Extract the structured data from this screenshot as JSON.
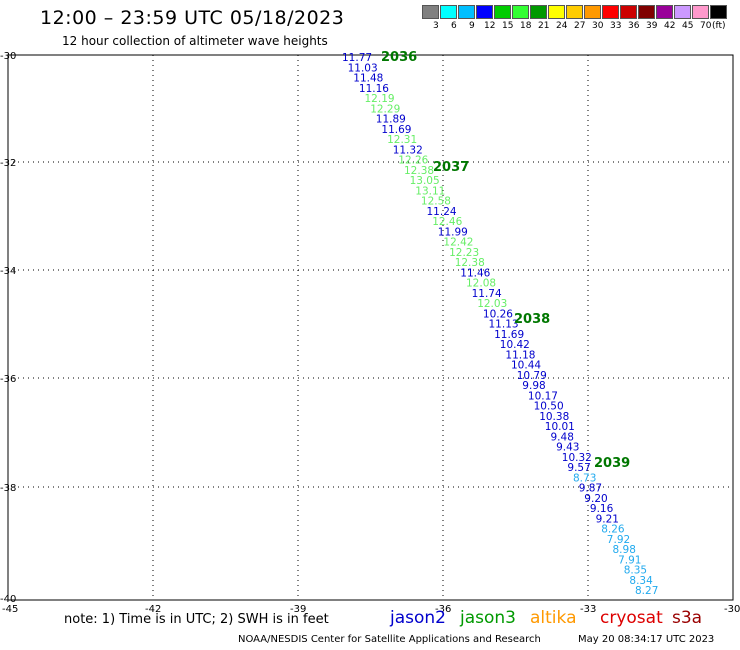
{
  "header": {
    "title": "12:00 – 23:59 UTC 05/18/2023",
    "subtitle": "12 hour collection of altimeter wave heights"
  },
  "legend": {
    "colors": [
      "#808080",
      "#00ffff",
      "#00bfff",
      "#0000ff",
      "#00cc00",
      "#33ff33",
      "#009900",
      "#ffff00",
      "#ffcc00",
      "#ff9900",
      "#ff0000",
      "#cc0000",
      "#800000",
      "#990099",
      "#cc99ff",
      "#ff99cc",
      "#000000"
    ],
    "labels": [
      "3",
      "6",
      "9",
      "12",
      "15",
      "18",
      "21",
      "24",
      "27",
      "30",
      "33",
      "36",
      "39",
      "42",
      "45",
      "70",
      "(ft)"
    ]
  },
  "map": {
    "lat_labels": [
      "-30",
      "-32",
      "-34",
      "-36",
      "-38",
      "-40"
    ],
    "lon_labels": [
      "-45",
      "-42",
      "-39",
      "-36",
      "-33",
      "-30"
    ],
    "series_colors": {
      "jason2": "#0000cc",
      "jason3": "#66ee66",
      "cryosat": "#22aaee"
    },
    "points": [
      {
        "v": "11.77",
        "c": "jason2"
      },
      {
        "v": "11.03",
        "c": "jason2"
      },
      {
        "v": "11.48",
        "c": "jason2"
      },
      {
        "v": "11.16",
        "c": "jason2"
      },
      {
        "v": "12.19",
        "c": "jason3"
      },
      {
        "v": "12.29",
        "c": "jason3"
      },
      {
        "v": "11.89",
        "c": "jason2"
      },
      {
        "v": "11.69",
        "c": "jason2"
      },
      {
        "v": "12.31",
        "c": "jason3"
      },
      {
        "v": "11.32",
        "c": "jason2"
      },
      {
        "v": "12.26",
        "c": "jason3"
      },
      {
        "v": "12.38",
        "c": "jason3"
      },
      {
        "v": "13.05",
        "c": "jason3"
      },
      {
        "v": "13.11",
        "c": "jason3"
      },
      {
        "v": "12.58",
        "c": "jason3"
      },
      {
        "v": "11.24",
        "c": "jason2"
      },
      {
        "v": "12.46",
        "c": "jason3"
      },
      {
        "v": "11.99",
        "c": "jason2"
      },
      {
        "v": "12.42",
        "c": "jason3"
      },
      {
        "v": "12.23",
        "c": "jason3"
      },
      {
        "v": "12.38",
        "c": "jason3"
      },
      {
        "v": "11.46",
        "c": "jason2"
      },
      {
        "v": "12.08",
        "c": "jason3"
      },
      {
        "v": "11.74",
        "c": "jason2"
      },
      {
        "v": "12.03",
        "c": "jason3"
      },
      {
        "v": "10.26",
        "c": "jason2"
      },
      {
        "v": "11.13",
        "c": "jason2"
      },
      {
        "v": "11.69",
        "c": "jason2"
      },
      {
        "v": "10.42",
        "c": "jason2"
      },
      {
        "v": "11.18",
        "c": "jason2"
      },
      {
        "v": "10.44",
        "c": "jason2"
      },
      {
        "v": "10.79",
        "c": "jason2"
      },
      {
        "v": "9.98",
        "c": "jason2"
      },
      {
        "v": "10.17",
        "c": "jason2"
      },
      {
        "v": "10.50",
        "c": "jason2"
      },
      {
        "v": "10.38",
        "c": "jason2"
      },
      {
        "v": "10.01",
        "c": "jason2"
      },
      {
        "v": "9.48",
        "c": "jason2"
      },
      {
        "v": "9.43",
        "c": "jason2"
      },
      {
        "v": "10.32",
        "c": "jason2"
      },
      {
        "v": "9.57",
        "c": "jason2"
      },
      {
        "v": "8.73",
        "c": "cryosat"
      },
      {
        "v": "9.87",
        "c": "jason2"
      },
      {
        "v": "9.20",
        "c": "jason2"
      },
      {
        "v": "9.16",
        "c": "jason2"
      },
      {
        "v": "9.21",
        "c": "jason2"
      },
      {
        "v": "8.26",
        "c": "cryosat"
      },
      {
        "v": "7.92",
        "c": "cryosat"
      },
      {
        "v": "8.98",
        "c": "cryosat"
      },
      {
        "v": "7.91",
        "c": "cryosat"
      },
      {
        "v": "8.35",
        "c": "cryosat"
      },
      {
        "v": "8.34",
        "c": "cryosat"
      },
      {
        "v": "8.27",
        "c": "cryosat"
      }
    ],
    "pass_times": [
      "2036",
      "2037",
      "2038",
      "2039"
    ]
  },
  "footer": {
    "note": "note:  1) Time is in UTC;  2) SWH is in feet",
    "satellites": [
      {
        "name": "jason2",
        "color": "#0000cc"
      },
      {
        "name": "jason3",
        "color": "#009900"
      },
      {
        "name": "altika",
        "color": "#ff9900"
      },
      {
        "name": "cryosat",
        "color": "#dd0000"
      },
      {
        "name": "s3a",
        "color": "#990000"
      }
    ],
    "credit": "NOAA/NESDIS Center for Satellite Applications and Research",
    "timestamp": "May 20 08:34:17 UTC 2023"
  }
}
